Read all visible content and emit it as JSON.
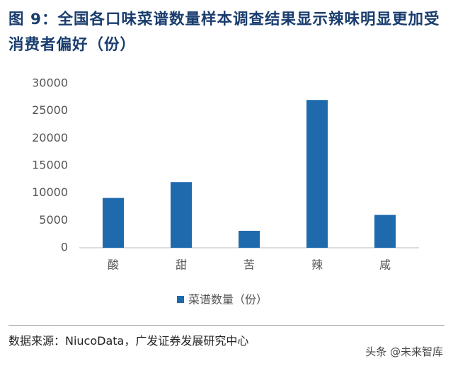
{
  "chart_data": {
    "type": "bar",
    "title": "图 9：全国各口味菜谱数量样本调查结果显示辣味明显更加受消费者偏好（份）",
    "categories": [
      "酸",
      "甜",
      "苦",
      "辣",
      "咸"
    ],
    "series": [
      {
        "name": "菜谱数量（份）",
        "color": "#1f6aad",
        "values": [
          9100,
          12000,
          3100,
          27000,
          6000
        ]
      }
    ],
    "ylim": [
      0,
      30000
    ],
    "yticks": [
      0,
      5000,
      10000,
      15000,
      20000,
      25000,
      30000
    ],
    "legend": "bottom",
    "source": "数据来源：NiucoData，广发证券发展研究中心",
    "watermark": "头条 @未来智库"
  }
}
